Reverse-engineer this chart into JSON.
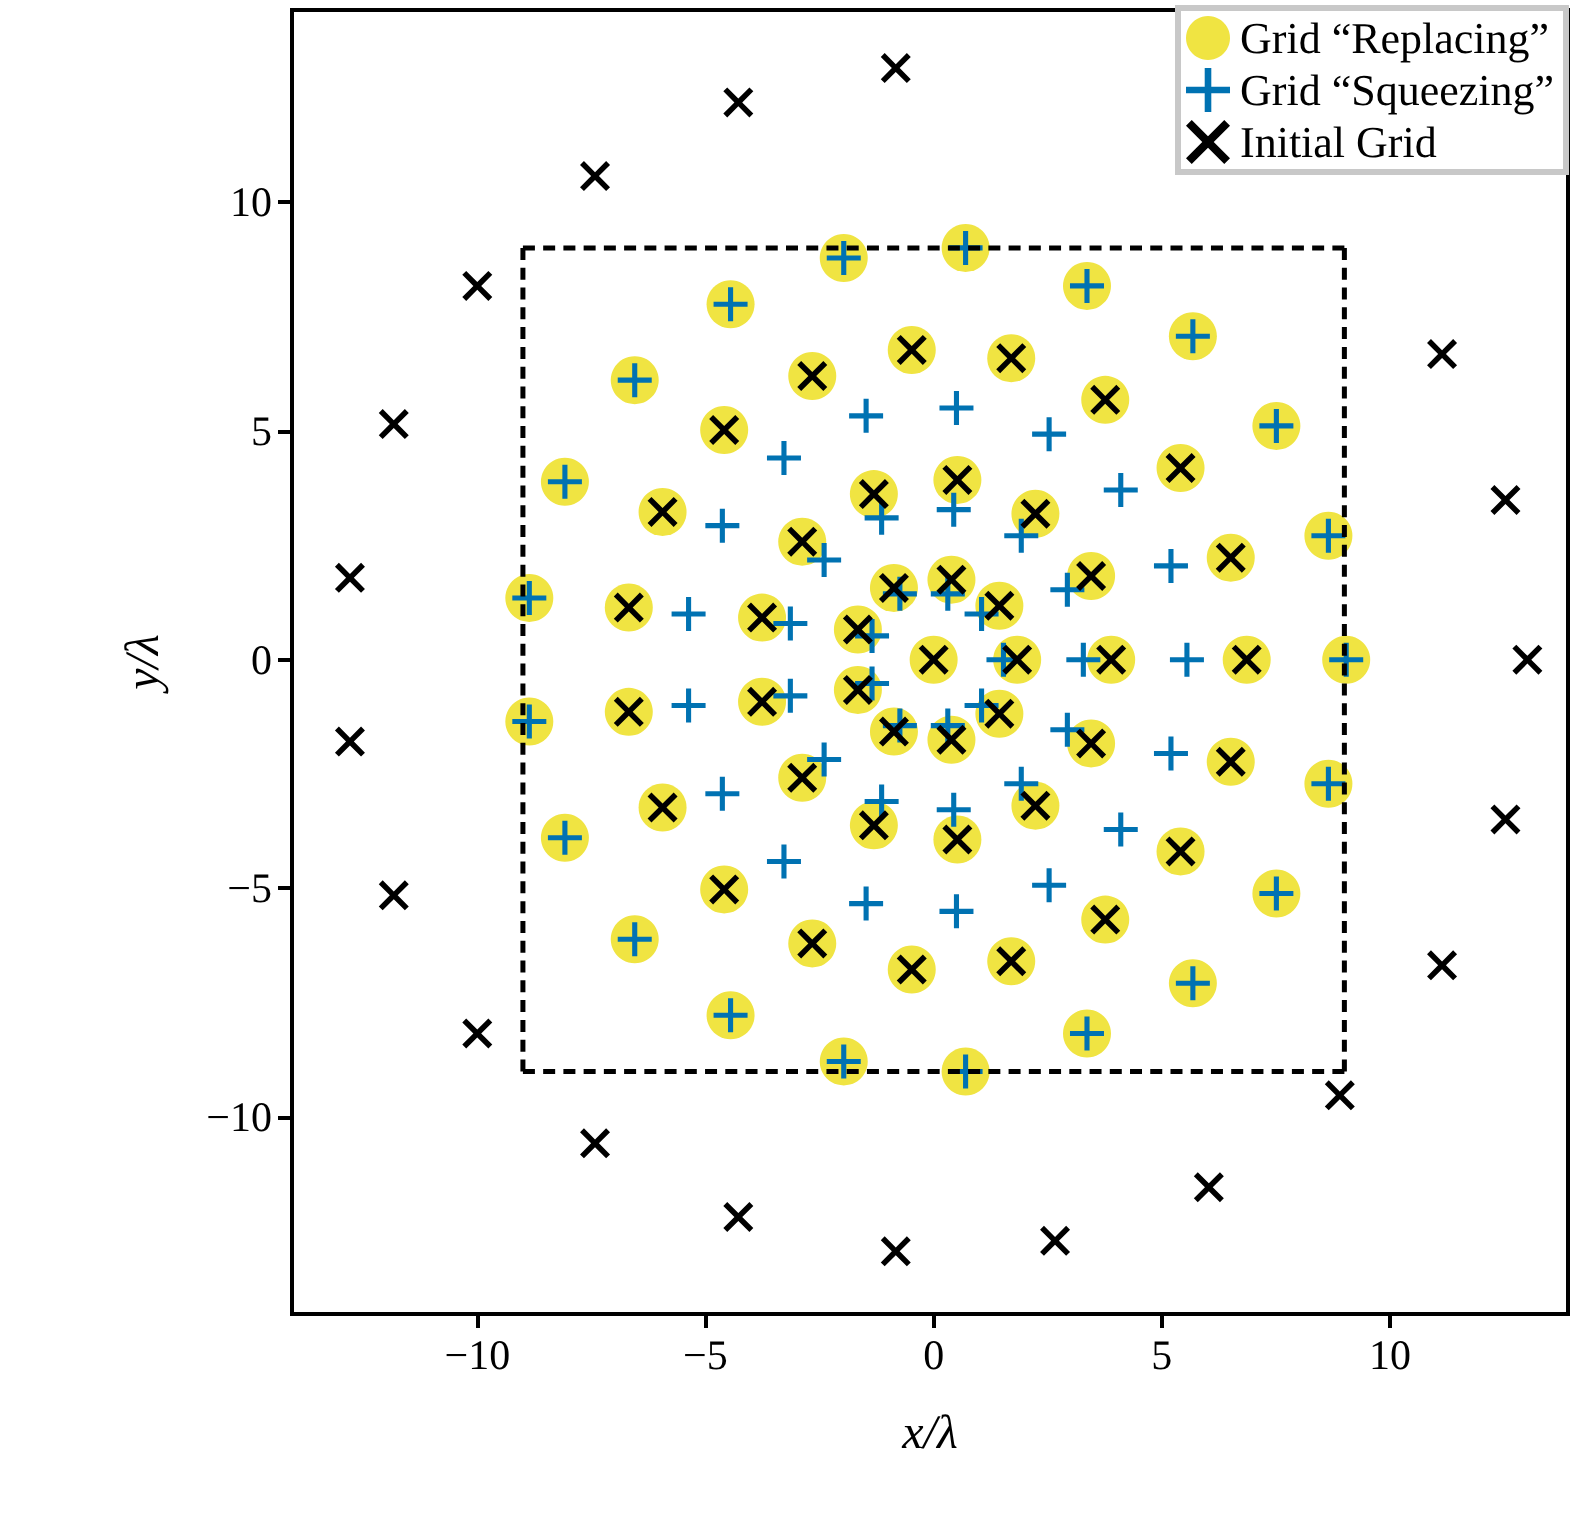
{
  "chart_data": {
    "type": "scatter",
    "xlabel": "x/λ",
    "ylabel": "y/λ",
    "xlim": [
      -14.06,
      13.9
    ],
    "ylim": [
      -14.3,
      14.2
    ],
    "xticks": [
      {
        "value": -10,
        "label": "−10"
      },
      {
        "value": -5,
        "label": "−5"
      },
      0,
      5,
      10
    ],
    "yticks": [
      {
        "value": -10,
        "label": "−10"
      },
      {
        "value": -5,
        "label": "−5"
      },
      0,
      5,
      10
    ],
    "grid": false,
    "legend": "top right",
    "series": [
      {
        "type": "line",
        "color": "#000000",
        "line_style": "dashed",
        "marker": "none",
        "x": [
          -9,
          9
        ],
        "values": [
          9,
          9
        ]
      },
      {
        "type": "line",
        "color": "#000000",
        "line_style": "dashed",
        "marker": "none",
        "x": [
          9,
          9
        ],
        "values": [
          9,
          -9
        ]
      },
      {
        "type": "line",
        "color": "#000000",
        "line_style": "dashed",
        "marker": "none",
        "x": [
          9,
          -9
        ],
        "values": [
          -9,
          -9
        ]
      },
      {
        "type": "line",
        "color": "#000000",
        "line_style": "dashed",
        "marker": "none",
        "x": [
          -9,
          -9
        ],
        "values": [
          -9,
          9
        ]
      },
      {
        "name": "Grid “Replacing”",
        "color": "#f0e442",
        "marker": "circle",
        "x": [
          -1.97,
          -4.45,
          -6.55,
          -8.08,
          -8.86,
          0.7,
          3.36,
          5.68,
          7.51,
          8.65,
          9.04,
          -1.97,
          -4.45,
          -6.55,
          -8.08,
          -8.86,
          0.7,
          3.36,
          5.68,
          7.51,
          8.65,
          -0.48,
          -2.66,
          -4.59,
          -1.31,
          -5.94,
          -2.88,
          -6.68,
          -3.76,
          -0.87,
          -1.66,
          0.39,
          1.7,
          3.76,
          5.41,
          6.51,
          0.52,
          2.23,
          3.45,
          1.44,
          0,
          1.83,
          3.89,
          6.86,
          -0.48,
          -2.66,
          -4.59,
          -1.31,
          -5.94,
          -2.88,
          -6.68,
          -3.76,
          -0.87,
          -1.66,
          0.39,
          1.7,
          3.76,
          5.41,
          6.51,
          0.52,
          2.23,
          3.45,
          1.44
        ],
        "values": [
          8.78,
          7.77,
          6.11,
          3.89,
          1.35,
          9.0,
          8.17,
          7.07,
          5.11,
          2.71,
          0,
          -8.78,
          -7.77,
          -6.11,
          -3.89,
          -1.35,
          -9.0,
          -8.17,
          -7.07,
          -5.11,
          -2.71,
          6.77,
          6.2,
          5.02,
          3.62,
          3.23,
          2.58,
          1.14,
          0.92,
          1.57,
          0.66,
          1.75,
          6.59,
          5.68,
          4.19,
          2.23,
          3.93,
          3.19,
          1.83,
          1.18,
          0,
          0,
          0,
          0,
          -6.77,
          -6.2,
          -5.02,
          -3.62,
          -3.23,
          -2.58,
          -1.14,
          -0.92,
          -1.57,
          -0.66,
          -1.75,
          -6.59,
          -5.68,
          -4.19,
          -2.23,
          -3.93,
          -3.19,
          -1.83,
          -1.18
        ]
      },
      {
        "name": "Grid “Squeezing”",
        "color": "#0072b2",
        "marker": "plus",
        "x": [
          -1.97,
          -4.45,
          -6.55,
          -8.08,
          -8.86,
          0.7,
          3.36,
          5.68,
          7.51,
          8.65,
          9.04,
          -1.97,
          -4.45,
          -6.55,
          -8.08,
          -8.86,
          0.7,
          3.36,
          5.68,
          7.51,
          8.65,
          -1.48,
          -3.28,
          -4.63,
          -5.37,
          -3.14,
          -2.4,
          -1.14,
          -0.74,
          -1.35,
          0.5,
          2.53,
          4.1,
          0.44,
          1.92,
          5.2,
          2.93,
          0.31,
          1.05,
          1.53,
          3.28,
          5.55,
          -1.48,
          -3.28,
          -4.63,
          -5.37,
          -3.14,
          -2.4,
          -1.14,
          -0.74,
          -1.35,
          0.5,
          2.53,
          4.1,
          0.44,
          1.92,
          5.2,
          2.93,
          0.31,
          1.05
        ],
        "values": [
          8.78,
          7.77,
          6.11,
          3.89,
          1.35,
          9.0,
          8.17,
          7.07,
          5.11,
          2.71,
          0,
          -8.78,
          -7.77,
          -6.11,
          -3.89,
          -1.35,
          -9.0,
          -8.17,
          -7.07,
          -5.11,
          -2.71,
          5.33,
          4.41,
          2.93,
          1.0,
          0.79,
          2.18,
          3.1,
          1.44,
          0.52,
          5.5,
          4.93,
          3.71,
          3.28,
          2.71,
          2.05,
          1.53,
          1.44,
          1.0,
          0,
          0,
          0,
          -5.33,
          -4.41,
          -2.93,
          -1.0,
          -0.79,
          -2.18,
          -3.1,
          -1.44,
          -0.52,
          -5.5,
          -4.93,
          -3.71,
          -3.28,
          -2.71,
          -2.05,
          -1.53,
          -1.44,
          -1.0
        ]
      },
      {
        "name": "Initial Grid",
        "color": "#000000",
        "marker": "cross",
        "x": [
          -0.83,
          -4.28,
          -7.42,
          -10.0,
          -11.83,
          -12.79,
          11.14,
          12.53,
          13.01,
          -0.83,
          -4.28,
          -7.42,
          -10.0,
          -11.83,
          -12.79,
          11.14,
          12.53,
          8.9,
          6.03,
          2.66,
          -0.48,
          -2.66,
          -4.59,
          -1.31,
          -5.94,
          -2.88,
          -6.68,
          -3.76,
          -0.87,
          -1.66,
          0.39,
          1.7,
          3.76,
          5.41,
          6.51,
          0.52,
          2.23,
          3.45,
          1.44,
          0,
          1.83,
          3.89,
          6.86,
          -0.48,
          -2.66,
          -4.59,
          -1.31,
          -5.94,
          -2.88,
          -6.68,
          -3.76,
          -0.87,
          -1.66,
          0.39,
          1.7,
          3.76,
          5.41,
          6.51,
          0.52,
          2.23,
          3.45,
          1.44
        ],
        "values": [
          12.93,
          12.18,
          10.57,
          8.17,
          5.15,
          1.79,
          6.68,
          3.49,
          0,
          -12.93,
          -12.18,
          -10.57,
          -8.17,
          -5.15,
          -1.79,
          -6.68,
          -3.49,
          -9.52,
          -11.53,
          -12.7,
          6.77,
          6.2,
          5.02,
          3.62,
          3.23,
          2.58,
          1.14,
          0.92,
          1.57,
          0.66,
          1.75,
          6.59,
          5.68,
          4.19,
          2.23,
          3.93,
          3.19,
          1.83,
          1.18,
          0,
          0,
          0,
          0,
          -6.77,
          -6.2,
          -5.02,
          -3.62,
          -3.23,
          -2.58,
          -1.14,
          -0.92,
          -1.57,
          -0.66,
          -1.75,
          -6.59,
          -5.68,
          -4.19,
          -2.23,
          -3.93,
          -3.19,
          -1.83,
          -1.18
        ]
      }
    ]
  }
}
